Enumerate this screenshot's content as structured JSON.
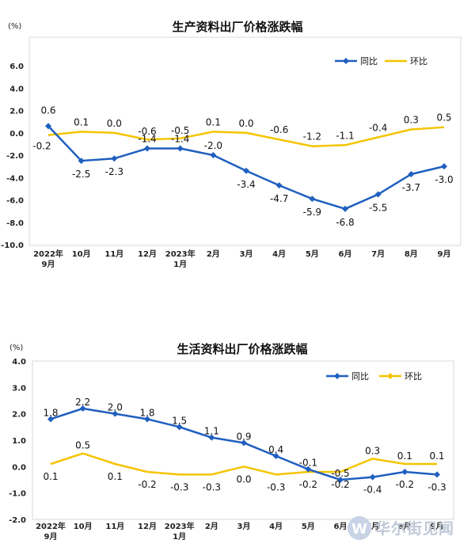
{
  "watermark": {
    "text": "华尔街见闻"
  },
  "chart_data": [
    {
      "type": "line",
      "title": "生产资料出厂价格涨跌幅",
      "unit_label": "(%)",
      "categories": [
        [
          "2022年",
          "9月"
        ],
        [
          "10月"
        ],
        [
          "11月"
        ],
        [
          "12月"
        ],
        [
          "2023年",
          "1月"
        ],
        [
          "2月"
        ],
        [
          "3月"
        ],
        [
          "4月"
        ],
        [
          "5月"
        ],
        [
          "6月"
        ],
        [
          "7月"
        ],
        [
          "8月"
        ],
        [
          "9月"
        ]
      ],
      "yticks": [
        "6.0",
        "4.0",
        "2.0",
        "0.0",
        "-2.0",
        "-4.0",
        "-6.0",
        "-8.0",
        "-10.0"
      ],
      "ylim": [
        -10,
        6
      ],
      "series": [
        {
          "name": "同比",
          "color": "#1f5fbf",
          "values": [
            0.6,
            -2.5,
            -2.3,
            -1.4,
            -1.4,
            -2.0,
            -3.4,
            -4.7,
            -5.9,
            -6.8,
            -5.5,
            -3.7,
            -3.0
          ],
          "labels": [
            "0.6",
            "-2.5",
            "-2.3",
            "-1.4",
            "-1.4",
            "-2.0",
            "-3.4",
            "-4.7",
            "-5.9",
            "-6.8",
            "-5.5",
            "-3.7",
            "-3.0"
          ]
        },
        {
          "name": "环比",
          "color": "#f5c400",
          "values": [
            -0.2,
            0.1,
            0.0,
            -0.6,
            -0.5,
            0.1,
            0.0,
            -0.6,
            -1.2,
            -1.1,
            -0.4,
            0.3,
            0.5
          ],
          "labels": [
            "-0.2",
            "0.1",
            "0.0",
            "-0.6",
            "-0.5",
            "0.1",
            "0.0",
            "-0.6",
            "-1.2",
            "-1.1",
            "-0.4",
            "0.3",
            "0.5"
          ]
        }
      ]
    },
    {
      "type": "line",
      "title": "生活资料出厂价格涨跌幅",
      "unit_label": "(%)",
      "categories": [
        [
          "2022年",
          "9月"
        ],
        [
          "10月"
        ],
        [
          "11月"
        ],
        [
          "12月"
        ],
        [
          "2023年",
          "1月"
        ],
        [
          "2月"
        ],
        [
          "3月"
        ],
        [
          "4月"
        ],
        [
          "5月"
        ],
        [
          "6月"
        ],
        [
          "7月"
        ],
        [
          "8月"
        ],
        [
          "9月"
        ]
      ],
      "yticks": [
        "4.0",
        "3.0",
        "2.0",
        "1.0",
        "0.0",
        "-1.0",
        "-2.0"
      ],
      "ylim": [
        -2,
        4
      ],
      "series": [
        {
          "name": "同比",
          "color": "#1f5fbf",
          "values": [
            1.8,
            2.2,
            2.0,
            1.8,
            1.5,
            1.1,
            0.9,
            0.4,
            -0.1,
            -0.5,
            -0.4,
            -0.2,
            -0.3
          ],
          "labels": [
            "1.8",
            "2.2",
            "2.0",
            "1.8",
            "1.5",
            "1.1",
            "0.9",
            "0.4",
            "-0.1",
            "-0.5",
            "-0.4",
            "-0.2",
            "-0.3"
          ]
        },
        {
          "name": "环比",
          "color": "#f5c400",
          "values": [
            0.1,
            0.5,
            0.1,
            -0.2,
            -0.3,
            -0.3,
            0.0,
            -0.3,
            -0.2,
            -0.2,
            0.3,
            0.1,
            0.1
          ],
          "labels": [
            "0.1",
            "0.5",
            "0.1",
            "-0.2",
            "-0.3",
            "-0.3",
            "0.0",
            "-0.3",
            "-0.2",
            "-0.2",
            "0.3",
            "0.1",
            "0.1"
          ]
        }
      ]
    }
  ]
}
